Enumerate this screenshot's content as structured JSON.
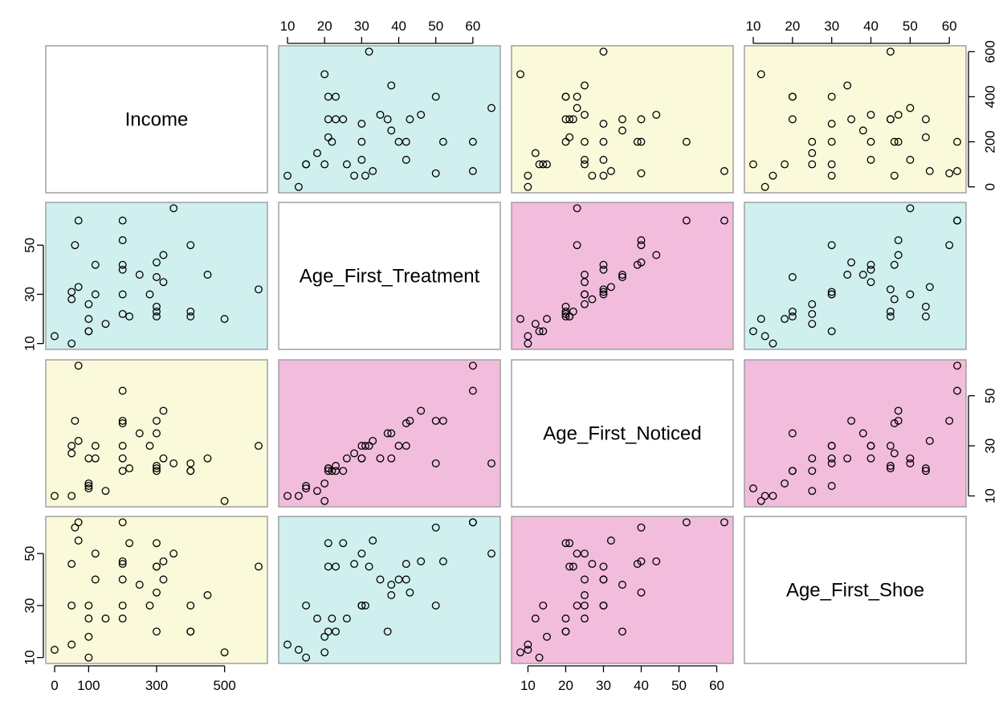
{
  "chart_data": {
    "type": "scatter",
    "variables": [
      "Income",
      "Age_First_Treatment",
      "Age_First_Noticed",
      "Age_First_Shoe"
    ],
    "ranges": {
      "Income": [
        0,
        600
      ],
      "Age_First_Treatment": [
        10,
        65
      ],
      "Age_First_Noticed": [
        8,
        62
      ],
      "Age_First_Shoe": [
        10,
        62
      ]
    },
    "ticks": {
      "Income": [
        "0",
        "100",
        "300",
        "500"
      ],
      "Income_right": [
        "0",
        "200",
        "400",
        "600"
      ],
      "Age_First_Treatment": [
        "10",
        "20",
        "30",
        "40",
        "50",
        "60"
      ],
      "Age_First_Treatment_left": [
        "10",
        "30",
        "50"
      ],
      "Age_First_Noticed": [
        "10",
        "20",
        "30",
        "40",
        "50",
        "60"
      ],
      "Age_First_Noticed_right": [
        "10",
        "30",
        "50"
      ],
      "Age_First_Shoe": [
        "10",
        "20",
        "30",
        "40",
        "50",
        "60"
      ],
      "Age_First_Shoe_left": [
        "10",
        "30",
        "50"
      ]
    },
    "panel_colors": {
      "cyan": "#d0f0f0",
      "yellow": "#fafada",
      "pink": "#f2bcdc",
      "white": "#ffffff"
    },
    "panel_fill": [
      [
        "white",
        "cyan",
        "yellow",
        "yellow"
      ],
      [
        "cyan",
        "white",
        "pink",
        "cyan"
      ],
      [
        "yellow",
        "pink",
        "white",
        "pink"
      ],
      [
        "yellow",
        "cyan",
        "pink",
        "white"
      ]
    ],
    "points": [
      [
        0,
        13,
        10,
        13
      ],
      [
        50,
        10,
        10,
        15
      ],
      [
        50,
        28,
        27,
        46
      ],
      [
        50,
        31,
        30,
        30
      ],
      [
        60,
        50,
        40,
        60
      ],
      [
        70,
        60,
        62,
        62
      ],
      [
        70,
        33,
        32,
        55
      ],
      [
        100,
        15,
        14,
        30
      ],
      [
        100,
        20,
        15,
        18
      ],
      [
        100,
        26,
        25,
        25
      ],
      [
        100,
        15,
        13,
        10
      ],
      [
        120,
        30,
        25,
        50
      ],
      [
        120,
        42,
        30,
        40
      ],
      [
        150,
        18,
        12,
        25
      ],
      [
        200,
        60,
        52,
        62
      ],
      [
        200,
        52,
        40,
        47
      ],
      [
        200,
        42,
        39,
        46
      ],
      [
        200,
        40,
        30,
        40
      ],
      [
        200,
        30,
        25,
        30
      ],
      [
        200,
        22,
        20,
        25
      ],
      [
        220,
        21,
        21,
        54
      ],
      [
        250,
        38,
        35,
        38
      ],
      [
        280,
        30,
        30,
        30
      ],
      [
        300,
        43,
        40,
        35
      ],
      [
        300,
        37,
        35,
        20
      ],
      [
        300,
        25,
        20,
        54
      ],
      [
        300,
        23,
        22,
        45
      ],
      [
        300,
        21,
        21,
        45
      ],
      [
        320,
        46,
        44,
        47
      ],
      [
        320,
        35,
        25,
        40
      ],
      [
        350,
        65,
        23,
        50
      ],
      [
        400,
        50,
        23,
        30
      ],
      [
        400,
        23,
        20,
        20
      ],
      [
        400,
        21,
        20,
        20
      ],
      [
        450,
        38,
        25,
        34
      ],
      [
        500,
        20,
        8,
        12
      ],
      [
        600,
        32,
        30,
        45
      ]
    ]
  }
}
